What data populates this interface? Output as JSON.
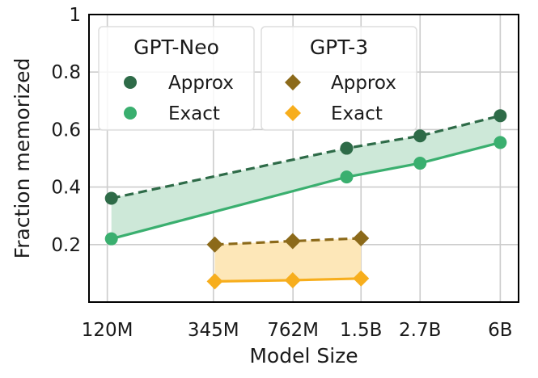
{
  "chart_data": {
    "type": "line",
    "xlabel": "Model Size",
    "ylabel": "Fraction memorized",
    "x_scale": "log",
    "x_ticks": [
      {
        "label": "120M",
        "value": 120000000
      },
      {
        "label": "345M",
        "value": 345000000
      },
      {
        "label": "762M",
        "value": 762000000
      },
      {
        "label": "1.5B",
        "value": 1500000000
      },
      {
        "label": "2.7B",
        "value": 2700000000
      },
      {
        "label": "6B",
        "value": 6000000000
      }
    ],
    "y_ticks": [
      {
        "label": "0.2",
        "value": 0.2
      },
      {
        "label": "0.4",
        "value": 0.4
      },
      {
        "label": "0.6",
        "value": 0.6
      },
      {
        "label": "0.8",
        "value": 0.8
      },
      {
        "label": "1",
        "value": 1.0
      }
    ],
    "ylim": [
      0.0,
      1.0
    ],
    "xlim": [
      100000000,
      7200000000
    ],
    "grid": true,
    "legend_placement": "top-left",
    "legend_groups": [
      {
        "title": "GPT-Neo",
        "entries": [
          {
            "label": "Approx",
            "marker": "circle",
            "color": "#2e6b48"
          },
          {
            "label": "Exact",
            "marker": "circle",
            "color": "#3aaf6f"
          }
        ]
      },
      {
        "title": "GPT-3",
        "entries": [
          {
            "label": "Approx",
            "marker": "diamond",
            "color": "#8c6a1a"
          },
          {
            "label": "Exact",
            "marker": "diamond",
            "color": "#f7ae1d"
          }
        ]
      }
    ],
    "series": [
      {
        "group": "GPT-Neo",
        "kind": "Approx",
        "line": "dashed",
        "marker": "circle",
        "color": "#2e6b48",
        "x": [
          125000000,
          1300000000,
          2700000000,
          6000000000
        ],
        "y": [
          0.361,
          0.535,
          0.578,
          0.648
        ]
      },
      {
        "group": "GPT-Neo",
        "kind": "Exact",
        "line": "solid",
        "marker": "circle",
        "color": "#3aaf6f",
        "x": [
          125000000,
          1300000000,
          2700000000,
          6000000000
        ],
        "y": [
          0.22,
          0.435,
          0.483,
          0.555
        ]
      },
      {
        "group": "GPT-3",
        "kind": "Approx",
        "line": "dashed",
        "marker": "diamond",
        "color": "#8c6a1a",
        "x": [
          350000000,
          760000000,
          1500000000
        ],
        "y": [
          0.2,
          0.212,
          0.222
        ]
      },
      {
        "group": "GPT-3",
        "kind": "Exact",
        "line": "solid",
        "marker": "diamond",
        "color": "#f7ae1d",
        "x": [
          350000000,
          760000000,
          1500000000
        ],
        "y": [
          0.072,
          0.076,
          0.082
        ]
      }
    ],
    "bands": [
      {
        "group": "GPT-Neo",
        "fill": "#cde8d8"
      },
      {
        "group": "GPT-3",
        "fill": "#fde7b8"
      }
    ]
  }
}
